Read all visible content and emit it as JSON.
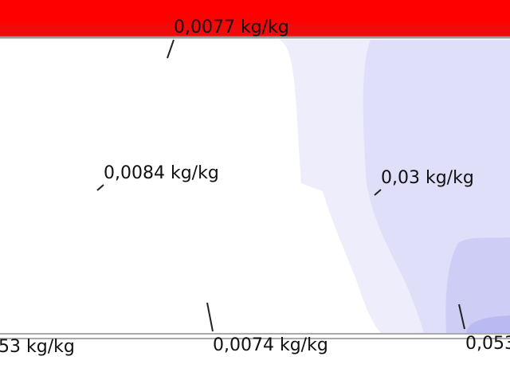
{
  "labels": [
    "0,0077 kg/kg",
    "0,0084 kg/kg",
    "0,03 kg/kg",
    "53 kg/kg",
    "0,0074 kg/kg",
    "0,053"
  ]
}
